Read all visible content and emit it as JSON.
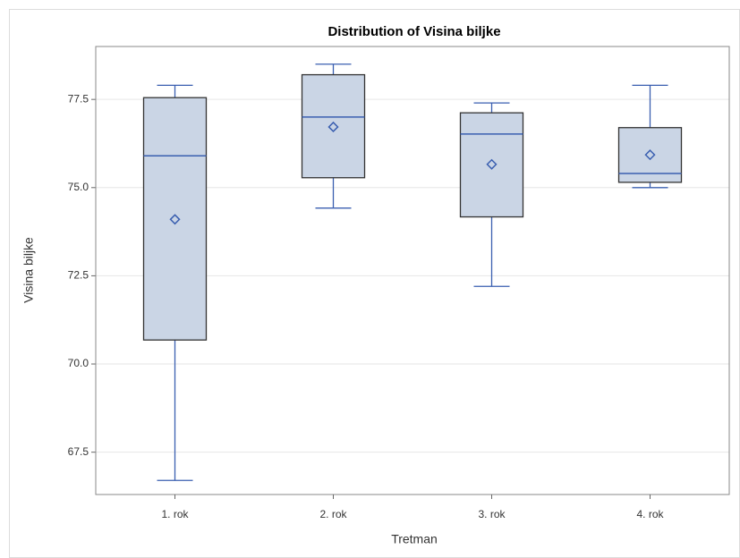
{
  "chart_data": {
    "type": "box",
    "title": "Distribution of Visina biljke",
    "x_label": "Tretman",
    "y_label": "Visina biljke",
    "categories": [
      "1. rok",
      "2. rok",
      "3. rok",
      "4. rok"
    ],
    "stats": {
      "min": [
        66.7,
        74.42,
        72.2,
        75.0
      ],
      "q1": [
        70.68,
        75.28,
        74.17,
        75.15
      ],
      "median": [
        75.9,
        77.0,
        76.52,
        75.4
      ],
      "q3": [
        77.55,
        78.2,
        77.12,
        76.7
      ],
      "max": [
        77.9,
        78.5,
        77.4,
        77.9
      ],
      "mean": [
        74.1,
        76.72,
        75.66,
        75.93
      ]
    },
    "box_color": "#cad5e5",
    "line_color": "#3a5fb0",
    "edge_color": "#333333",
    "ylim": [
      66.3,
      79.0
    ],
    "yticks": [
      67.5,
      {
        "value": 70,
        "label": "70.0"
      },
      72.5,
      {
        "value": 75,
        "label": "75.0"
      },
      77.5
    ],
    "grid": true
  }
}
